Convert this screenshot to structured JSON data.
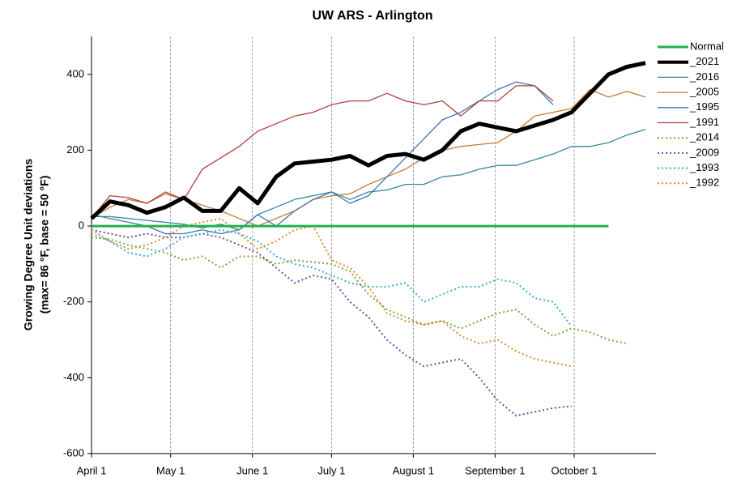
{
  "chart_data": {
    "type": "line",
    "title": "UW ARS - Arlington",
    "ylabel": [
      "Growing Degree Unit deviations",
      "(max= 86 °F, base = 50 °F)"
    ],
    "x": [
      0,
      7,
      14,
      21,
      28,
      35,
      42,
      49,
      56,
      63,
      70,
      77,
      84,
      91,
      98,
      105,
      112,
      119,
      126,
      133,
      140,
      147,
      154,
      161,
      168,
      175,
      182,
      189,
      196,
      203,
      210
    ],
    "xlim": [
      0,
      214
    ],
    "xticks": [
      {
        "value": 0,
        "label": "April 1"
      },
      {
        "value": 30,
        "label": "May 1"
      },
      {
        "value": 61,
        "label": "June 1"
      },
      {
        "value": 91,
        "label": "July 1"
      },
      {
        "value": 122,
        "label": "August 1"
      },
      {
        "value": 153,
        "label": "September 1"
      },
      {
        "value": 183,
        "label": "October 1"
      }
    ],
    "ylim": [
      -600,
      500
    ],
    "yticks": [
      -600,
      -400,
      -200,
      0,
      200,
      400
    ],
    "grid": "x",
    "legend": "right",
    "series": [
      {
        "name": "Normal",
        "color": "#21b04b",
        "width": 3,
        "dash": "solid",
        "values": [
          0,
          0,
          0,
          0,
          0,
          0,
          0,
          0,
          0,
          0,
          0,
          0,
          0,
          0,
          0,
          0,
          0,
          0,
          0,
          0,
          0,
          0,
          0,
          0,
          0,
          0,
          0,
          0,
          0,
          null,
          null
        ]
      },
      {
        "name": "_2021",
        "color": "#000000",
        "width": 5,
        "dash": "solid",
        "values": [
          20,
          65,
          55,
          35,
          50,
          75,
          40,
          40,
          100,
          60,
          130,
          165,
          170,
          175,
          185,
          160,
          185,
          190,
          175,
          200,
          250,
          270,
          260,
          250,
          265,
          280,
          300,
          350,
          400,
          420,
          430
        ]
      },
      {
        "name": "_2016",
        "color": "#2e8b9a",
        "width": 1.3,
        "dash": "solid",
        "values": [
          25,
          25,
          20,
          15,
          10,
          5,
          -5,
          5,
          -10,
          30,
          50,
          70,
          80,
          90,
          70,
          90,
          95,
          110,
          110,
          130,
          135,
          150,
          160,
          160,
          175,
          190,
          210,
          210,
          220,
          240,
          255
        ]
      },
      {
        "name": "_2005",
        "color": "#c87a30",
        "width": 1.3,
        "dash": "solid",
        "values": [
          20,
          50,
          70,
          60,
          85,
          70,
          55,
          40,
          20,
          0,
          20,
          40,
          70,
          80,
          85,
          110,
          130,
          150,
          180,
          200,
          210,
          215,
          220,
          250,
          290,
          300,
          310,
          360,
          340,
          355,
          340
        ]
      },
      {
        "name": "_1995",
        "color": "#3a74b8",
        "width": 1.3,
        "dash": "solid",
        "values": [
          30,
          20,
          10,
          0,
          -20,
          -20,
          -10,
          -20,
          -10,
          30,
          0,
          40,
          70,
          90,
          60,
          80,
          130,
          180,
          230,
          280,
          300,
          330,
          360,
          380,
          370,
          320,
          null,
          null,
          null,
          null,
          null
        ]
      },
      {
        "name": "_1991",
        "color": "#b04040",
        "width": 1.3,
        "dash": "solid",
        "values": [
          20,
          80,
          75,
          60,
          90,
          70,
          150,
          180,
          210,
          250,
          270,
          290,
          300,
          320,
          330,
          330,
          350,
          330,
          320,
          330,
          290,
          330,
          330,
          370,
          370,
          330,
          null,
          null,
          null,
          null,
          null
        ]
      },
      {
        "name": "_2014",
        "color": "#7aa83e",
        "width": 2,
        "dash": "dotted",
        "values": [
          -30,
          -35,
          -50,
          -60,
          -70,
          -90,
          -80,
          -110,
          -80,
          -80,
          -100,
          -90,
          -95,
          -100,
          -120,
          -180,
          -220,
          -240,
          -260,
          -250,
          -270,
          -250,
          -230,
          -220,
          -260,
          -290,
          -270,
          -280,
          -300,
          -310,
          null
        ]
      },
      {
        "name": "_2009",
        "color": "#6b4fa0",
        "width": 2,
        "dash": "dotted",
        "values": [
          -10,
          -20,
          -30,
          -20,
          -30,
          -30,
          -20,
          -30,
          -50,
          -70,
          -110,
          -150,
          -130,
          -140,
          -200,
          -240,
          -300,
          -340,
          -370,
          -360,
          -350,
          -400,
          -460,
          -500,
          -490,
          -480,
          -475,
          null,
          null,
          null,
          null
        ]
      },
      {
        "name": "_1993",
        "color": "#3ab0c8",
        "width": 2,
        "dash": "dotted",
        "values": [
          -20,
          -40,
          -70,
          -80,
          -60,
          -30,
          -20,
          -10,
          -20,
          -40,
          -80,
          -100,
          -110,
          -130,
          -150,
          -160,
          -160,
          -150,
          -200,
          -180,
          -160,
          -160,
          -140,
          -150,
          -190,
          -200,
          -265,
          null,
          null,
          null,
          null
        ]
      },
      {
        "name": "_1992",
        "color": "#e08a30",
        "width": 2,
        "dash": "dotted",
        "values": [
          -10,
          -40,
          -60,
          -50,
          -30,
          0,
          10,
          20,
          -20,
          -60,
          -40,
          -10,
          0,
          -90,
          -110,
          -160,
          -230,
          -250,
          -260,
          -250,
          -290,
          -310,
          -300,
          -330,
          -350,
          -360,
          -370,
          null,
          null,
          null,
          null
        ]
      }
    ]
  }
}
